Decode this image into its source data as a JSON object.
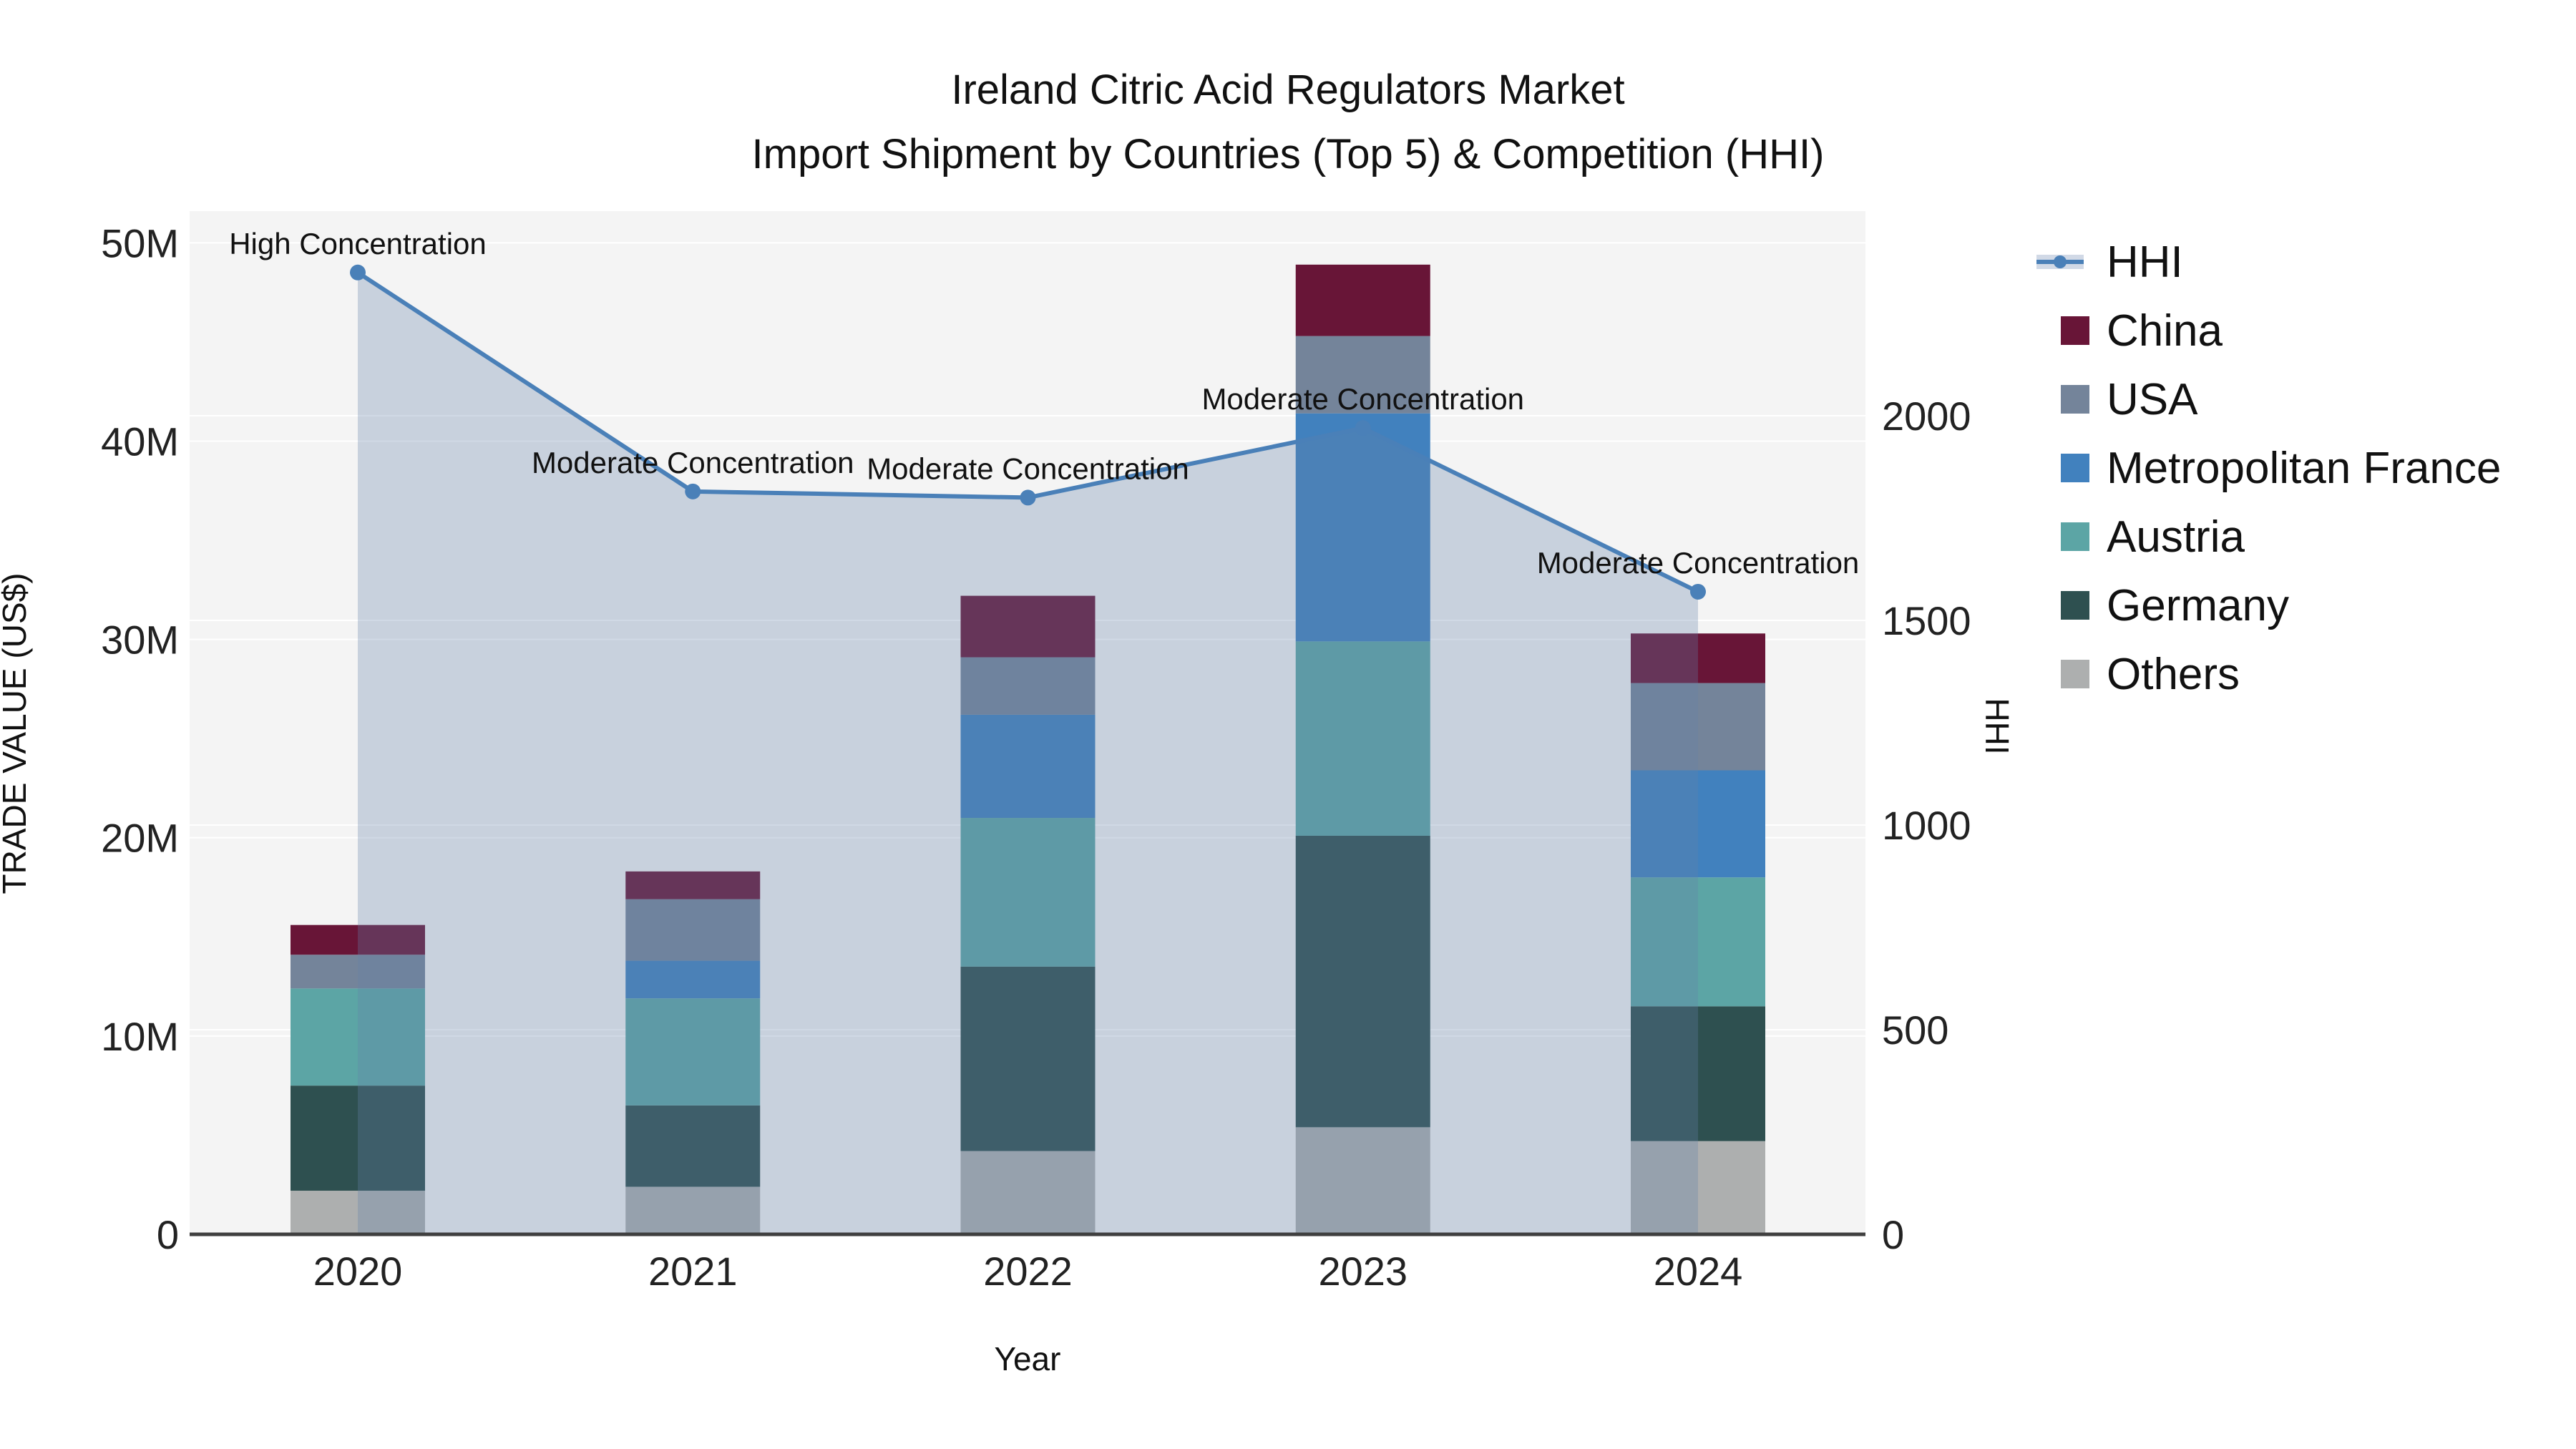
{
  "header": {
    "line1": "Ireland Citric Acid Regulators Market",
    "line2": "Import Shipment by Countries (Top 5) & Competition (HHI)"
  },
  "legend": {
    "items": [
      {
        "label": "HHI",
        "type": "line",
        "color": "#4A80B8",
        "band_color": "#D1D9E6"
      },
      {
        "label": "China",
        "type": "swatch",
        "color": "#681537"
      },
      {
        "label": "USA",
        "type": "swatch",
        "color": "#74849A"
      },
      {
        "label": "Metropolitan France",
        "type": "swatch",
        "color": "#4181BE"
      },
      {
        "label": "Austria",
        "type": "swatch",
        "color": "#5CA5A5"
      },
      {
        "label": "Germany",
        "type": "swatch",
        "color": "#2E5050"
      },
      {
        "label": "Others",
        "type": "swatch",
        "color": "#ADAFAF"
      }
    ]
  },
  "chart_data": {
    "type": "bar+line",
    "title": "Ireland Citric Acid Regulators Market — Import Shipment by Countries (Top 5) & Competition (HHI)",
    "categories": [
      "2020",
      "2021",
      "2022",
      "2023",
      "2024"
    ],
    "xlabel": "Year",
    "ylabel": "TRADE VALUE (US$)",
    "y2label": "HHI",
    "ylim": [
      0,
      51.6
    ],
    "y2lim": [
      0,
      2500
    ],
    "yticks": {
      "values": [
        0,
        10,
        20,
        30,
        40,
        50
      ],
      "labels": [
        "0",
        "10M",
        "20M",
        "30M",
        "40M",
        "50M"
      ]
    },
    "y2ticks": {
      "values": [
        0,
        500,
        1000,
        1500,
        2000
      ],
      "labels": [
        "0",
        "500",
        "1000",
        "1500",
        "2000"
      ]
    },
    "bar_unit": "millions of US$",
    "stack_order_bottom_to_top": [
      "Others",
      "Germany",
      "Austria",
      "Metropolitan France",
      "USA",
      "China"
    ],
    "series": [
      {
        "name": "China",
        "color": "#681537",
        "values": [
          1.5,
          1.4,
          3.1,
          3.6,
          2.5
        ]
      },
      {
        "name": "USA",
        "color": "#74849A",
        "values": [
          1.7,
          3.1,
          2.9,
          3.9,
          4.4
        ]
      },
      {
        "name": "Metropolitan France",
        "color": "#4181BE",
        "values": [
          0.0,
          1.9,
          5.2,
          11.5,
          5.4
        ]
      },
      {
        "name": "Austria",
        "color": "#5CA5A5",
        "values": [
          4.9,
          5.4,
          7.5,
          9.8,
          6.5
        ]
      },
      {
        "name": "Germany",
        "color": "#2E5050",
        "values": [
          5.3,
          4.1,
          9.3,
          14.7,
          6.8
        ]
      },
      {
        "name": "Others",
        "color": "#ADAFAF",
        "values": [
          2.2,
          2.4,
          4.2,
          5.4,
          4.7
        ]
      }
    ],
    "bar_totals": [
      15.6,
      18.3,
      32.2,
      48.9,
      30.3
    ],
    "line_series": {
      "name": "HHI",
      "axis": "y2",
      "color": "#4A80B8",
      "area_color": "rgba(100,128,170,0.30)",
      "values": [
        2350,
        1815,
        1800,
        1970,
        1570
      ]
    },
    "annotations": [
      {
        "category": "2020",
        "text": "High Concentration"
      },
      {
        "category": "2021",
        "text": "Moderate Concentration"
      },
      {
        "category": "2022",
        "text": "Moderate Concentration"
      },
      {
        "category": "2023",
        "text": "Moderate Concentration"
      },
      {
        "category": "2024",
        "text": "Moderate Concentration"
      }
    ],
    "grid": true,
    "legend_position": "right"
  },
  "colors": {
    "plot_bg": "#F4F4F4",
    "grid": "#FFFFFF",
    "axis_line": "#3F3F3F",
    "text": "#111111",
    "tick_text": "#222222"
  }
}
